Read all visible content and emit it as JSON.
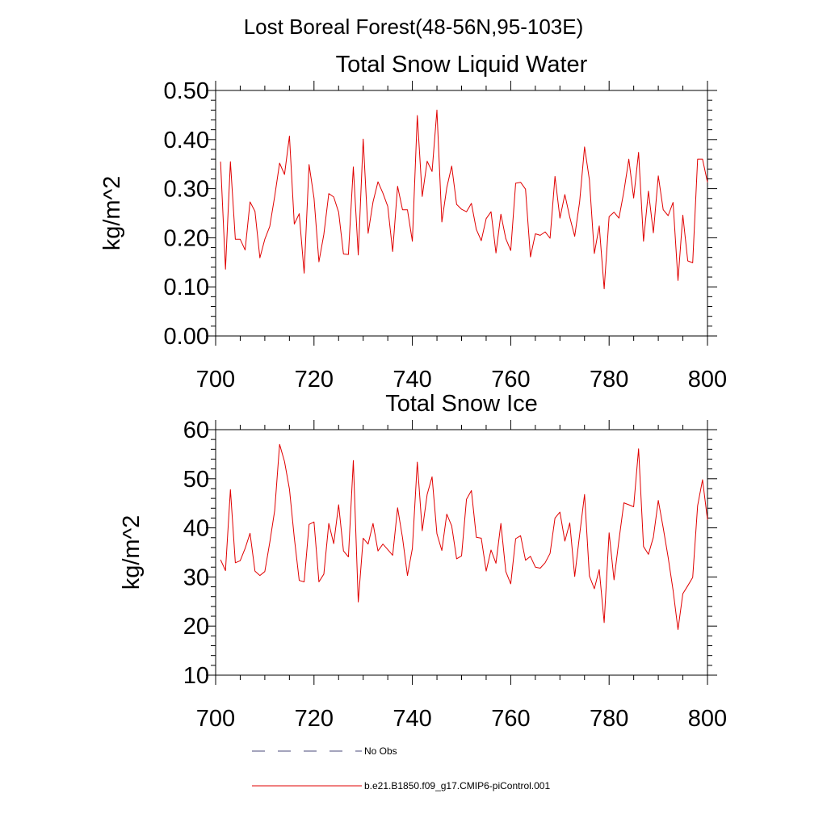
{
  "figure": {
    "title": "Lost Boreal Forest(48-56N,95-103E)"
  },
  "legend": {
    "placement": "bottom",
    "entries": [
      {
        "label": "No Obs",
        "color": "#4a4a7a",
        "style": "dashed"
      },
      {
        "label": "b.e21.B1850.f09_g17.CMIP6-piControl.001",
        "color": "#e00000",
        "style": "solid"
      }
    ]
  },
  "chart_data": [
    {
      "type": "line",
      "title": "Total Snow Liquid Water",
      "xlabel": "",
      "ylabel": "kg/m^2",
      "xlim": [
        700,
        800
      ],
      "ylim": [
        0,
        0.5
      ],
      "xticks": [
        700,
        720,
        740,
        760,
        780,
        800
      ],
      "xtick_labels": [
        "700",
        "720",
        "740",
        "760",
        "780",
        "800"
      ],
      "yticks": [
        0,
        0.1,
        0.2,
        0.3,
        0.4,
        0.5
      ],
      "ytick_labels": [
        "0.00",
        "0.10",
        "0.20",
        "0.30",
        "0.40",
        "0.50"
      ],
      "grid": false,
      "series": [
        {
          "name": "b.e21.B1850.f09_g17.CMIP6-piControl.001",
          "color": "#e00000",
          "x_start": 701,
          "x_step": 1,
          "values": [
            0.355,
            0.136,
            0.355,
            0.197,
            0.197,
            0.175,
            0.273,
            0.254,
            0.159,
            0.197,
            0.223,
            0.284,
            0.352,
            0.329,
            0.407,
            0.228,
            0.249,
            0.128,
            0.349,
            0.281,
            0.151,
            0.207,
            0.29,
            0.283,
            0.252,
            0.167,
            0.166,
            0.344,
            0.165,
            0.401,
            0.209,
            0.273,
            0.314,
            0.291,
            0.264,
            0.172,
            0.305,
            0.257,
            0.257,
            0.193,
            0.449,
            0.284,
            0.356,
            0.335,
            0.46,
            0.232,
            0.302,
            0.346,
            0.268,
            0.258,
            0.253,
            0.27,
            0.217,
            0.194,
            0.239,
            0.253,
            0.169,
            0.248,
            0.198,
            0.174,
            0.311,
            0.313,
            0.299,
            0.161,
            0.208,
            0.205,
            0.212,
            0.199,
            0.325,
            0.24,
            0.288,
            0.242,
            0.203,
            0.273,
            0.385,
            0.318,
            0.168,
            0.224,
            0.096,
            0.243,
            0.252,
            0.24,
            0.294,
            0.36,
            0.281,
            0.374,
            0.193,
            0.295,
            0.21,
            0.326,
            0.257,
            0.245,
            0.272,
            0.113,
            0.246,
            0.153,
            0.149,
            0.36,
            0.36,
            0.313
          ]
        }
      ]
    },
    {
      "type": "line",
      "title": "Total Snow Ice",
      "xlabel": "",
      "ylabel": "kg/m^2",
      "xlim": [
        700,
        800
      ],
      "ylim": [
        10,
        60
      ],
      "xticks": [
        700,
        720,
        740,
        760,
        780,
        800
      ],
      "xtick_labels": [
        "700",
        "720",
        "740",
        "760",
        "780",
        "800"
      ],
      "yticks": [
        10,
        20,
        30,
        40,
        50,
        60
      ],
      "ytick_labels": [
        "10",
        "20",
        "30",
        "40",
        "50",
        "60"
      ],
      "grid": false,
      "series": [
        {
          "name": "b.e21.B1850.f09_g17.CMIP6-piControl.001",
          "color": "#e00000",
          "x_start": 701,
          "x_step": 1,
          "values": [
            33.5,
            31.3,
            47.8,
            32.9,
            33.3,
            35.8,
            38.9,
            31.2,
            30.3,
            31.1,
            37.0,
            43.5,
            57.0,
            53.5,
            47.9,
            38.0,
            29.3,
            29.0,
            40.7,
            41.2,
            29.0,
            30.6,
            40.9,
            36.8,
            44.7,
            35.3,
            34.1,
            53.7,
            24.9,
            37.9,
            36.7,
            40.9,
            35.3,
            36.7,
            35.6,
            34.4,
            44.1,
            38.0,
            30.3,
            35.8,
            53.4,
            39.4,
            46.8,
            50.4,
            38.8,
            35.4,
            42.8,
            40.4,
            33.7,
            34.3,
            45.8,
            47.6,
            38.1,
            37.9,
            31.2,
            35.5,
            32.8,
            40.9,
            31.1,
            28.6,
            37.8,
            38.4,
            33.4,
            34.2,
            32.0,
            31.8,
            32.9,
            34.8,
            42.0,
            43.2,
            37.3,
            41.0,
            30.1,
            38.6,
            46.8,
            30.2,
            27.6,
            31.5,
            20.7,
            39.0,
            29.4,
            37.5,
            45.1,
            44.7,
            44.3,
            56.1,
            36.2,
            34.6,
            38.1,
            45.6,
            40.0,
            34.0,
            27.3,
            19.3,
            26.6,
            28.2,
            29.9,
            44.5,
            49.8,
            41.7
          ]
        }
      ]
    }
  ]
}
